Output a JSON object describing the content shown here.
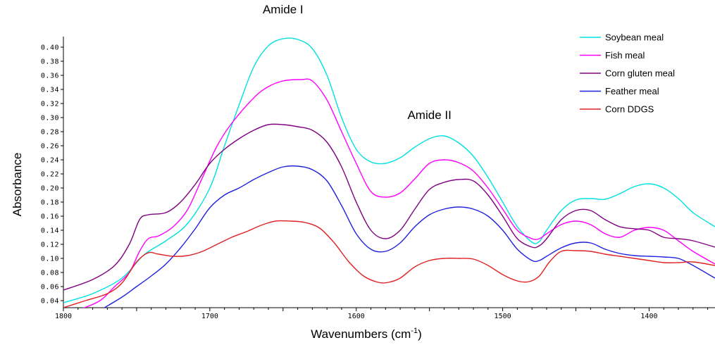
{
  "chart_data": {
    "type": "line",
    "xlabel": "Wavenumbers (cm",
    "xlabel_sup": "-1",
    "xlabel_end": ")",
    "ylabel": "Absorbance",
    "xlim": [
      1800,
      1355
    ],
    "x_reversed": true,
    "ylim": [
      0.03,
      0.415
    ],
    "x_ticks": [
      "1800",
      "1700",
      "1600",
      "1500",
      "1400"
    ],
    "y_ticks": [
      "0.04",
      "0.06",
      "0.08",
      "0.10",
      "0.12",
      "0.14",
      "0.16",
      "0.18",
      "0.20",
      "0.22",
      "0.24",
      "0.26",
      "0.28",
      "0.30",
      "0.32",
      "0.34",
      "0.36",
      "0.38",
      "0.40"
    ],
    "grid": false,
    "legend_position": "top-right",
    "annotations": [
      {
        "text": "Amide I",
        "x": 1650,
        "y": 0.448
      },
      {
        "text": "Amide II",
        "x": 1550,
        "y": 0.298
      }
    ],
    "series": [
      {
        "name": "Soybean meal",
        "color": "#00e0e0",
        "points": [
          [
            1800,
            0.037
          ],
          [
            1780,
            0.05
          ],
          [
            1760,
            0.072
          ],
          [
            1745,
            0.105
          ],
          [
            1730,
            0.125
          ],
          [
            1715,
            0.15
          ],
          [
            1700,
            0.2
          ],
          [
            1690,
            0.26
          ],
          [
            1680,
            0.318
          ],
          [
            1670,
            0.372
          ],
          [
            1660,
            0.402
          ],
          [
            1650,
            0.412
          ],
          [
            1640,
            0.411
          ],
          [
            1630,
            0.398
          ],
          [
            1620,
            0.36
          ],
          [
            1610,
            0.3
          ],
          [
            1600,
            0.255
          ],
          [
            1590,
            0.237
          ],
          [
            1580,
            0.235
          ],
          [
            1570,
            0.243
          ],
          [
            1560,
            0.258
          ],
          [
            1550,
            0.27
          ],
          [
            1540,
            0.274
          ],
          [
            1530,
            0.264
          ],
          [
            1520,
            0.245
          ],
          [
            1510,
            0.215
          ],
          [
            1500,
            0.18
          ],
          [
            1490,
            0.145
          ],
          [
            1480,
            0.123
          ],
          [
            1475,
            0.124
          ],
          [
            1470,
            0.14
          ],
          [
            1460,
            0.168
          ],
          [
            1450,
            0.183
          ],
          [
            1440,
            0.185
          ],
          [
            1430,
            0.184
          ],
          [
            1420,
            0.192
          ],
          [
            1410,
            0.202
          ],
          [
            1400,
            0.206
          ],
          [
            1390,
            0.2
          ],
          [
            1380,
            0.185
          ],
          [
            1370,
            0.165
          ],
          [
            1355,
            0.145
          ]
        ]
      },
      {
        "name": "Fish meal",
        "color": "#ff00ff",
        "points": [
          [
            1788,
            0.028
          ],
          [
            1775,
            0.04
          ],
          [
            1765,
            0.06
          ],
          [
            1755,
            0.08
          ],
          [
            1748,
            0.11
          ],
          [
            1742,
            0.128
          ],
          [
            1735,
            0.132
          ],
          [
            1725,
            0.145
          ],
          [
            1715,
            0.17
          ],
          [
            1705,
            0.215
          ],
          [
            1695,
            0.26
          ],
          [
            1685,
            0.292
          ],
          [
            1670,
            0.328
          ],
          [
            1660,
            0.344
          ],
          [
            1650,
            0.352
          ],
          [
            1638,
            0.354
          ],
          [
            1630,
            0.352
          ],
          [
            1620,
            0.325
          ],
          [
            1610,
            0.28
          ],
          [
            1600,
            0.235
          ],
          [
            1590,
            0.195
          ],
          [
            1580,
            0.187
          ],
          [
            1570,
            0.193
          ],
          [
            1560,
            0.213
          ],
          [
            1550,
            0.235
          ],
          [
            1540,
            0.24
          ],
          [
            1530,
            0.236
          ],
          [
            1520,
            0.224
          ],
          [
            1510,
            0.2
          ],
          [
            1500,
            0.17
          ],
          [
            1490,
            0.14
          ],
          [
            1480,
            0.128
          ],
          [
            1475,
            0.128
          ],
          [
            1470,
            0.135
          ],
          [
            1460,
            0.148
          ],
          [
            1450,
            0.153
          ],
          [
            1440,
            0.148
          ],
          [
            1430,
            0.135
          ],
          [
            1420,
            0.13
          ],
          [
            1410,
            0.14
          ],
          [
            1400,
            0.144
          ],
          [
            1390,
            0.14
          ],
          [
            1380,
            0.125
          ],
          [
            1370,
            0.11
          ],
          [
            1355,
            0.092
          ]
        ]
      },
      {
        "name": "Corn gluten meal",
        "color": "#800080",
        "points": [
          [
            1800,
            0.055
          ],
          [
            1780,
            0.07
          ],
          [
            1765,
            0.09
          ],
          [
            1755,
            0.12
          ],
          [
            1748,
            0.155
          ],
          [
            1742,
            0.162
          ],
          [
            1730,
            0.165
          ],
          [
            1720,
            0.18
          ],
          [
            1710,
            0.205
          ],
          [
            1700,
            0.235
          ],
          [
            1690,
            0.255
          ],
          [
            1680,
            0.27
          ],
          [
            1670,
            0.282
          ],
          [
            1660,
            0.29
          ],
          [
            1650,
            0.29
          ],
          [
            1640,
            0.287
          ],
          [
            1630,
            0.282
          ],
          [
            1620,
            0.265
          ],
          [
            1610,
            0.23
          ],
          [
            1600,
            0.18
          ],
          [
            1590,
            0.14
          ],
          [
            1580,
            0.128
          ],
          [
            1570,
            0.14
          ],
          [
            1560,
            0.17
          ],
          [
            1550,
            0.198
          ],
          [
            1540,
            0.208
          ],
          [
            1530,
            0.212
          ],
          [
            1520,
            0.21
          ],
          [
            1510,
            0.19
          ],
          [
            1500,
            0.16
          ],
          [
            1490,
            0.128
          ],
          [
            1480,
            0.116
          ],
          [
            1475,
            0.118
          ],
          [
            1470,
            0.128
          ],
          [
            1460,
            0.155
          ],
          [
            1450,
            0.168
          ],
          [
            1440,
            0.168
          ],
          [
            1430,
            0.155
          ],
          [
            1420,
            0.145
          ],
          [
            1410,
            0.142
          ],
          [
            1400,
            0.14
          ],
          [
            1390,
            0.13
          ],
          [
            1380,
            0.128
          ],
          [
            1370,
            0.125
          ],
          [
            1355,
            0.116
          ]
        ]
      },
      {
        "name": "Feather meal",
        "color": "#2020e0",
        "points": [
          [
            1772,
            0.03
          ],
          [
            1760,
            0.045
          ],
          [
            1750,
            0.06
          ],
          [
            1740,
            0.075
          ],
          [
            1730,
            0.092
          ],
          [
            1720,
            0.115
          ],
          [
            1710,
            0.142
          ],
          [
            1700,
            0.172
          ],
          [
            1690,
            0.19
          ],
          [
            1680,
            0.2
          ],
          [
            1670,
            0.212
          ],
          [
            1660,
            0.222
          ],
          [
            1650,
            0.23
          ],
          [
            1640,
            0.231
          ],
          [
            1630,
            0.226
          ],
          [
            1620,
            0.21
          ],
          [
            1610,
            0.175
          ],
          [
            1600,
            0.135
          ],
          [
            1590,
            0.113
          ],
          [
            1580,
            0.11
          ],
          [
            1570,
            0.122
          ],
          [
            1560,
            0.145
          ],
          [
            1550,
            0.162
          ],
          [
            1540,
            0.17
          ],
          [
            1530,
            0.173
          ],
          [
            1520,
            0.17
          ],
          [
            1510,
            0.16
          ],
          [
            1500,
            0.14
          ],
          [
            1490,
            0.113
          ],
          [
            1480,
            0.097
          ],
          [
            1475,
            0.097
          ],
          [
            1470,
            0.103
          ],
          [
            1460,
            0.115
          ],
          [
            1450,
            0.122
          ],
          [
            1440,
            0.122
          ],
          [
            1430,
            0.113
          ],
          [
            1420,
            0.107
          ],
          [
            1410,
            0.104
          ],
          [
            1400,
            0.103
          ],
          [
            1390,
            0.102
          ],
          [
            1380,
            0.1
          ],
          [
            1370,
            0.09
          ],
          [
            1355,
            0.072
          ]
        ]
      },
      {
        "name": "Corn DDGS",
        "color": "#e02020",
        "points": [
          [
            1800,
            0.03
          ],
          [
            1785,
            0.04
          ],
          [
            1770,
            0.05
          ],
          [
            1760,
            0.065
          ],
          [
            1750,
            0.095
          ],
          [
            1742,
            0.108
          ],
          [
            1735,
            0.106
          ],
          [
            1725,
            0.103
          ],
          [
            1715,
            0.104
          ],
          [
            1705,
            0.11
          ],
          [
            1695,
            0.12
          ],
          [
            1685,
            0.13
          ],
          [
            1675,
            0.138
          ],
          [
            1665,
            0.147
          ],
          [
            1655,
            0.153
          ],
          [
            1645,
            0.153
          ],
          [
            1635,
            0.151
          ],
          [
            1625,
            0.143
          ],
          [
            1615,
            0.122
          ],
          [
            1605,
            0.095
          ],
          [
            1595,
            0.075
          ],
          [
            1585,
            0.066
          ],
          [
            1578,
            0.066
          ],
          [
            1570,
            0.072
          ],
          [
            1560,
            0.088
          ],
          [
            1550,
            0.097
          ],
          [
            1540,
            0.1
          ],
          [
            1530,
            0.1
          ],
          [
            1520,
            0.099
          ],
          [
            1510,
            0.09
          ],
          [
            1500,
            0.077
          ],
          [
            1490,
            0.068
          ],
          [
            1482,
            0.067
          ],
          [
            1475,
            0.075
          ],
          [
            1468,
            0.095
          ],
          [
            1460,
            0.11
          ],
          [
            1450,
            0.111
          ],
          [
            1440,
            0.11
          ],
          [
            1430,
            0.106
          ],
          [
            1420,
            0.103
          ],
          [
            1410,
            0.1
          ],
          [
            1400,
            0.097
          ],
          [
            1390,
            0.094
          ],
          [
            1380,
            0.094
          ],
          [
            1370,
            0.095
          ],
          [
            1355,
            0.09
          ]
        ]
      }
    ]
  }
}
